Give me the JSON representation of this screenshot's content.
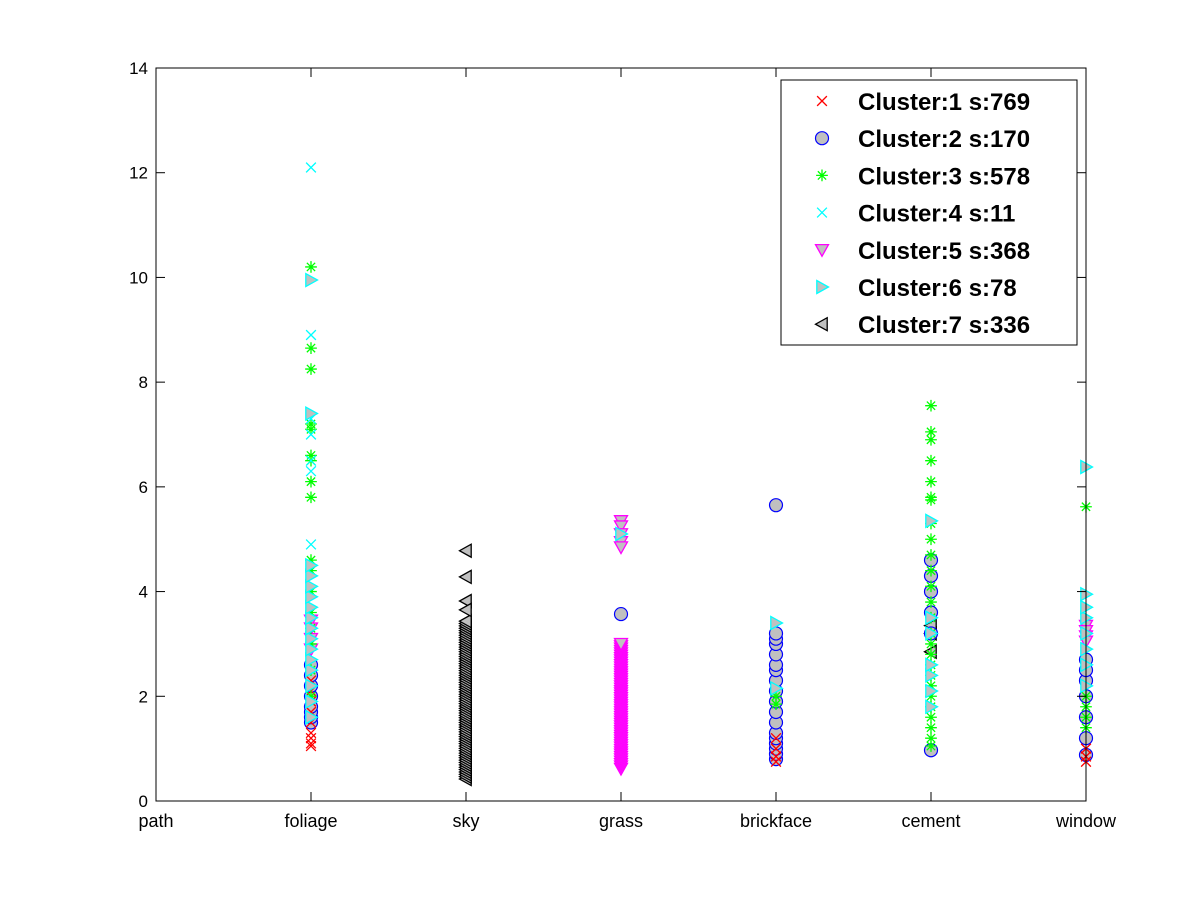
{
  "chart_data": {
    "type": "scatter",
    "title": "",
    "xlabel": "",
    "ylabel": "",
    "categories": [
      "path",
      "foliage",
      "sky",
      "grass",
      "brickface",
      "cement",
      "window"
    ],
    "xlim": [
      0,
      6
    ],
    "ylim": [
      0,
      14
    ],
    "y_ticks": [
      "0",
      "2",
      "4",
      "6",
      "8",
      "10",
      "12",
      "14"
    ],
    "grid": false,
    "legend_position": "top-right",
    "series": [
      {
        "name": "Cluster:1 s:769",
        "marker": "x",
        "color": "#ff0000",
        "points": [
          [
            1,
            1.05
          ],
          [
            1,
            1.1
          ],
          [
            1,
            1.2
          ],
          [
            1,
            1.3
          ],
          [
            1,
            1.5
          ],
          [
            1,
            1.7
          ],
          [
            1,
            1.9
          ],
          [
            1,
            2.1
          ],
          [
            1,
            2.3
          ],
          [
            4,
            0.75
          ],
          [
            4,
            0.85
          ],
          [
            4,
            1.0
          ],
          [
            4,
            1.2
          ],
          [
            6,
            0.75
          ],
          [
            6,
            0.85
          ],
          [
            6,
            1.0
          ]
        ]
      },
      {
        "name": "Cluster:2 s:170",
        "marker": "o",
        "color": "#0000ff",
        "fill": "#c0c0c0",
        "points": [
          [
            1,
            1.5
          ],
          [
            1,
            1.6
          ],
          [
            1,
            1.7
          ],
          [
            1,
            1.8
          ],
          [
            1,
            2.0
          ],
          [
            1,
            2.2
          ],
          [
            1,
            2.4
          ],
          [
            1,
            2.6
          ],
          [
            3,
            3.57
          ],
          [
            4,
            0.8
          ],
          [
            4,
            0.9
          ],
          [
            4,
            1.0
          ],
          [
            4,
            1.1
          ],
          [
            4,
            1.2
          ],
          [
            4,
            1.3
          ],
          [
            4,
            1.5
          ],
          [
            4,
            1.7
          ],
          [
            4,
            1.9
          ],
          [
            4,
            2.1
          ],
          [
            4,
            2.3
          ],
          [
            4,
            2.5
          ],
          [
            4,
            2.6
          ],
          [
            4,
            2.8
          ],
          [
            4,
            3.0
          ],
          [
            4,
            3.1
          ],
          [
            4,
            3.2
          ],
          [
            4,
            5.65
          ],
          [
            5,
            0.97
          ],
          [
            5,
            3.2
          ],
          [
            5,
            3.6
          ],
          [
            5,
            4.0
          ],
          [
            5,
            4.3
          ],
          [
            5,
            4.6
          ],
          [
            6,
            0.88
          ],
          [
            6,
            1.2
          ],
          [
            6,
            1.6
          ],
          [
            6,
            2.0
          ],
          [
            6,
            2.3
          ],
          [
            6,
            2.5
          ],
          [
            6,
            2.7
          ]
        ]
      },
      {
        "name": "Cluster:3 s:578",
        "marker": "*",
        "color": "#00ff00",
        "points": [
          [
            1,
            2.0
          ],
          [
            1,
            2.5
          ],
          [
            1,
            3.0
          ],
          [
            1,
            3.3
          ],
          [
            1,
            3.6
          ],
          [
            1,
            4.0
          ],
          [
            1,
            4.4
          ],
          [
            1,
            4.6
          ],
          [
            1,
            5.8
          ],
          [
            1,
            6.1
          ],
          [
            1,
            6.5
          ],
          [
            1,
            6.6
          ],
          [
            1,
            7.1
          ],
          [
            1,
            7.2
          ],
          [
            1,
            8.25
          ],
          [
            1,
            8.65
          ],
          [
            1,
            10.2
          ],
          [
            4,
            1.85
          ],
          [
            4,
            2.0
          ],
          [
            5,
            1.05
          ],
          [
            5,
            1.2
          ],
          [
            5,
            1.4
          ],
          [
            5,
            1.6
          ],
          [
            5,
            1.8
          ],
          [
            5,
            2.0
          ],
          [
            5,
            2.2
          ],
          [
            5,
            2.4
          ],
          [
            5,
            2.6
          ],
          [
            5,
            2.8
          ],
          [
            5,
            3.0
          ],
          [
            5,
            3.2
          ],
          [
            5,
            3.5
          ],
          [
            5,
            3.8
          ],
          [
            5,
            4.1
          ],
          [
            5,
            4.4
          ],
          [
            5,
            4.7
          ],
          [
            5,
            5.0
          ],
          [
            5,
            5.3
          ],
          [
            5,
            5.75
          ],
          [
            5,
            5.8
          ],
          [
            5,
            6.1
          ],
          [
            5,
            6.5
          ],
          [
            5,
            6.9
          ],
          [
            5,
            7.05
          ],
          [
            5,
            7.55
          ],
          [
            6,
            1.4
          ],
          [
            6,
            1.6
          ],
          [
            6,
            1.8
          ],
          [
            6,
            2.0
          ],
          [
            6,
            5.62
          ]
        ]
      },
      {
        "name": "Cluster:4 s:11",
        "marker": "x",
        "color": "#00ffff",
        "points": [
          [
            1,
            4.9
          ],
          [
            1,
            6.3
          ],
          [
            1,
            6.5
          ],
          [
            1,
            7.0
          ],
          [
            1,
            7.3
          ],
          [
            1,
            8.9
          ],
          [
            1,
            12.1
          ]
        ]
      },
      {
        "name": "Cluster:5 s:368",
        "marker": "v",
        "color": "#ff00ff",
        "fill": "#c0c0c0",
        "points": [
          [
            1,
            3.45
          ],
          [
            1,
            3.3
          ],
          [
            1,
            3.1
          ],
          [
            1,
            2.9
          ],
          [
            3,
            5.35
          ],
          [
            3,
            5.25
          ],
          [
            3,
            5.1
          ],
          [
            3,
            4.95
          ],
          [
            3,
            4.85
          ],
          [
            6,
            3.35
          ],
          [
            6,
            3.25
          ],
          [
            6,
            3.15
          ],
          [
            6,
            3.05
          ]
        ]
      },
      {
        "name": "Cluster:6 s:78",
        "marker": ">",
        "color": "#00ffff",
        "fill": "#c0c0c0",
        "points": [
          [
            1,
            1.6
          ],
          [
            1,
            1.9
          ],
          [
            1,
            2.2
          ],
          [
            1,
            2.5
          ],
          [
            1,
            2.7
          ],
          [
            1,
            2.9
          ],
          [
            1,
            3.1
          ],
          [
            1,
            3.3
          ],
          [
            1,
            3.5
          ],
          [
            1,
            3.7
          ],
          [
            1,
            3.9
          ],
          [
            1,
            4.1
          ],
          [
            1,
            4.3
          ],
          [
            1,
            4.5
          ],
          [
            1,
            7.4
          ],
          [
            1,
            9.95
          ],
          [
            3,
            5.1
          ],
          [
            4,
            2.15
          ],
          [
            4,
            3.4
          ],
          [
            5,
            1.8
          ],
          [
            5,
            2.1
          ],
          [
            5,
            2.4
          ],
          [
            5,
            2.6
          ],
          [
            5,
            3.2
          ],
          [
            5,
            3.5
          ],
          [
            5,
            5.35
          ],
          [
            6,
            2.2
          ],
          [
            6,
            2.6
          ],
          [
            6,
            2.9
          ],
          [
            6,
            3.2
          ],
          [
            6,
            3.5
          ],
          [
            6,
            3.7
          ],
          [
            6,
            3.95
          ],
          [
            6,
            6.38
          ]
        ]
      },
      {
        "name": "Cluster:7 s:336",
        "marker": "<",
        "color": "#000000",
        "fill": "#c0c0c0",
        "points": [
          [
            5,
            2.85
          ],
          [
            5,
            3.2
          ],
          [
            5,
            3.35
          ],
          [
            2,
            4.78
          ],
          [
            2,
            4.28
          ],
          [
            2,
            3.82
          ],
          [
            2,
            3.65
          ]
        ],
        "dense_ranges": [
          {
            "x": 2,
            "y_min": 0.42,
            "y_max": 3.45
          }
        ]
      }
    ],
    "dense_ranges_extra": [
      {
        "series": "Cluster:5 s:368",
        "x": 3,
        "y_min": 0.62,
        "y_max": 3.02
      }
    ]
  }
}
